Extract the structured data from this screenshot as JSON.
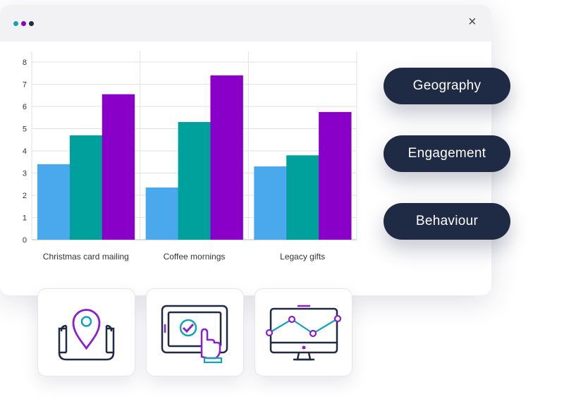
{
  "window": {
    "dots": [
      {
        "color": "#13a3b5",
        "left": 19
      },
      {
        "color": "#8a00c7",
        "left": 30
      },
      {
        "color": "#1f2a44",
        "left": 41
      }
    ],
    "close_label": "×"
  },
  "segments": [
    "Geography",
    "Engagement",
    "Behaviour"
  ],
  "colors": {
    "series1": "#4aa8ec",
    "series2": "#00a19c",
    "series3": "#8900c9",
    "dark": "#1f2a44",
    "purple": "#8a1fd0",
    "teal": "#13a3b5"
  },
  "icons": [
    "map-location-icon",
    "tablet-touch-icon",
    "monitor-chart-icon"
  ],
  "chart_data": {
    "type": "bar",
    "categories": [
      "Christmas card mailing",
      "Coffee mornings",
      "Legacy gifts"
    ],
    "series": [
      {
        "values": [
          3.4,
          2.35,
          3.3
        ]
      },
      {
        "values": [
          4.7,
          5.3,
          3.8
        ]
      },
      {
        "values": [
          6.55,
          7.4,
          5.75
        ]
      }
    ],
    "ylim": [
      0,
      8
    ],
    "yticks": [
      "0",
      "1",
      "2",
      "3",
      "4",
      "5",
      "6",
      "7",
      "8"
    ],
    "grid": true,
    "title": "",
    "xlabel": "",
    "ylabel": ""
  }
}
